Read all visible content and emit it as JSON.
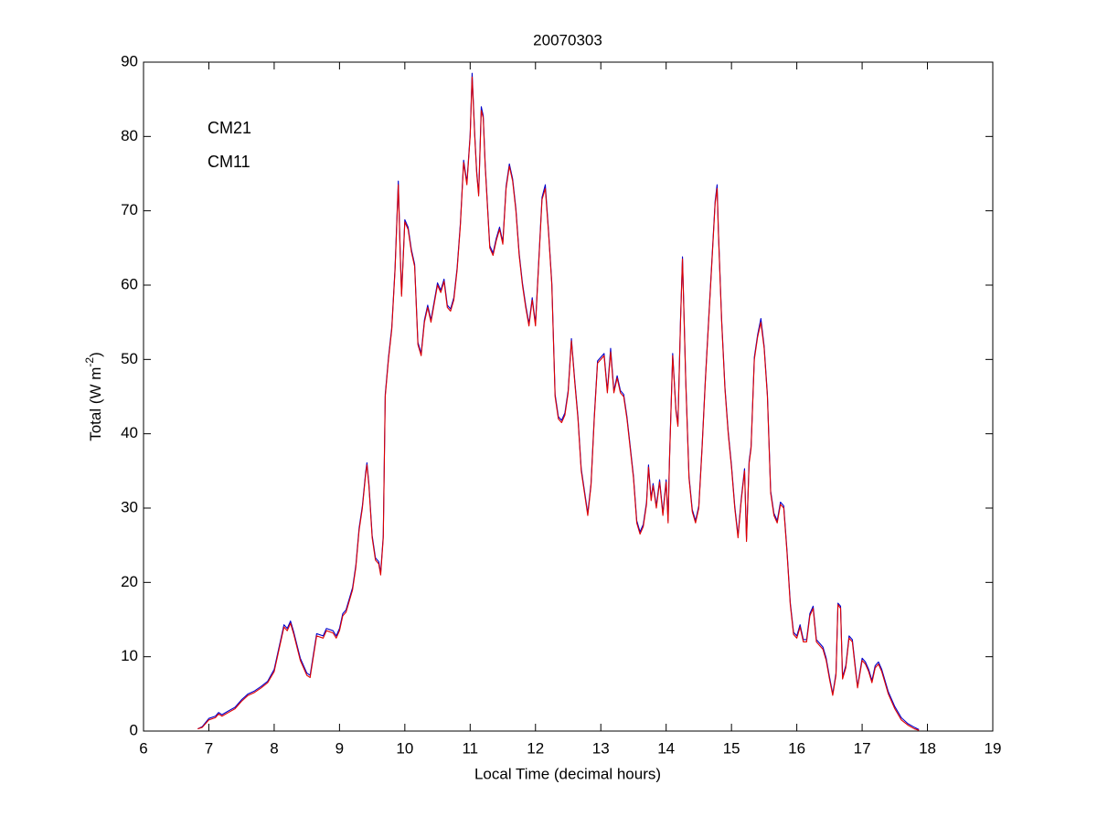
{
  "chart_data": {
    "type": "line",
    "title": "20070303",
    "x_label": "Local Time (decimal hours)",
    "y_label": {
      "text": "Total (W m",
      "superscript": "-2",
      "suffix": ")"
    },
    "xlim": [
      6,
      19
    ],
    "xticks": [
      6,
      7,
      8,
      9,
      10,
      11,
      12,
      13,
      14,
      15,
      16,
      17,
      18,
      19
    ],
    "ylim": [
      0,
      90
    ],
    "yticks": [
      0,
      10,
      20,
      30,
      40,
      50,
      60,
      70,
      80,
      90
    ],
    "grid": false,
    "legend": "upper left",
    "x": [
      6.83,
      6.9,
      7.0,
      7.1,
      7.15,
      7.2,
      7.3,
      7.4,
      7.5,
      7.6,
      7.7,
      7.8,
      7.9,
      8.0,
      8.1,
      8.15,
      8.2,
      8.25,
      8.3,
      8.4,
      8.5,
      8.55,
      8.6,
      8.65,
      8.75,
      8.8,
      8.9,
      8.95,
      9.0,
      9.05,
      9.1,
      9.15,
      9.2,
      9.25,
      9.3,
      9.35,
      9.4,
      9.42,
      9.45,
      9.5,
      9.55,
      9.6,
      9.63,
      9.67,
      9.7,
      9.75,
      9.8,
      9.85,
      9.9,
      9.93,
      9.95,
      10.0,
      10.05,
      10.1,
      10.15,
      10.2,
      10.25,
      10.3,
      10.35,
      10.4,
      10.45,
      10.5,
      10.55,
      10.6,
      10.65,
      10.7,
      10.75,
      10.8,
      10.85,
      10.9,
      10.95,
      11.0,
      11.03,
      11.07,
      11.1,
      11.13,
      11.17,
      11.2,
      11.23,
      11.3,
      11.35,
      11.4,
      11.45,
      11.5,
      11.55,
      11.6,
      11.65,
      11.7,
      11.75,
      11.8,
      11.85,
      11.9,
      11.95,
      12.0,
      12.05,
      12.1,
      12.15,
      12.2,
      12.25,
      12.3,
      12.35,
      12.4,
      12.45,
      12.5,
      12.55,
      12.6,
      12.65,
      12.7,
      12.75,
      12.8,
      12.85,
      12.9,
      12.95,
      13.0,
      13.05,
      13.1,
      13.15,
      13.2,
      13.25,
      13.3,
      13.35,
      13.4,
      13.45,
      13.5,
      13.55,
      13.6,
      13.65,
      13.7,
      13.73,
      13.77,
      13.8,
      13.85,
      13.9,
      13.95,
      14.0,
      14.03,
      14.05,
      14.1,
      14.15,
      14.18,
      14.22,
      14.25,
      14.3,
      14.35,
      14.4,
      14.45,
      14.5,
      14.55,
      14.6,
      14.65,
      14.7,
      14.75,
      14.78,
      14.8,
      14.85,
      14.9,
      14.95,
      15.0,
      15.05,
      15.1,
      15.15,
      15.2,
      15.23,
      15.27,
      15.3,
      15.35,
      15.4,
      15.45,
      15.5,
      15.55,
      15.6,
      15.65,
      15.7,
      15.75,
      15.8,
      15.85,
      15.9,
      15.95,
      16.0,
      16.05,
      16.1,
      16.15,
      16.2,
      16.25,
      16.3,
      16.35,
      16.4,
      16.45,
      16.5,
      16.55,
      16.6,
      16.63,
      16.67,
      16.7,
      16.75,
      16.8,
      16.85,
      16.9,
      16.93,
      17.0,
      17.05,
      17.1,
      17.15,
      17.2,
      17.25,
      17.3,
      17.35,
      17.4,
      17.5,
      17.6,
      17.7,
      17.8,
      17.87
    ],
    "series": [
      {
        "name": "CM21",
        "color": "#0000cc",
        "values": [
          0.3,
          0.6,
          1.7,
          2.0,
          2.5,
          2.2,
          2.7,
          3.2,
          4.2,
          5.0,
          5.4,
          6.0,
          6.7,
          8.3,
          12.3,
          14.3,
          13.8,
          14.8,
          13.3,
          9.8,
          7.8,
          7.5,
          10.3,
          13.1,
          12.8,
          13.8,
          13.5,
          12.8,
          13.8,
          15.8,
          16.3,
          17.8,
          19.3,
          22.3,
          27.3,
          30.3,
          34.8,
          36.1,
          33.3,
          26.3,
          23.3,
          22.8,
          21.3,
          26.3,
          45.3,
          50.3,
          54.3,
          62.3,
          74.0,
          64.3,
          58.8,
          68.8,
          67.8,
          64.8,
          62.8,
          52.3,
          50.8,
          55.3,
          57.3,
          55.3,
          57.8,
          60.3,
          59.3,
          60.8,
          57.3,
          56.8,
          58.3,
          62.3,
          68.3,
          76.8,
          73.8,
          80.3,
          88.5,
          80.3,
          75.3,
          72.3,
          84.0,
          82.8,
          76.3,
          65.3,
          64.3,
          66.3,
          67.8,
          65.8,
          73.3,
          76.3,
          74.3,
          70.3,
          64.3,
          60.3,
          57.3,
          54.8,
          58.3,
          54.8,
          63.3,
          71.8,
          73.5,
          67.3,
          60.3,
          45.3,
          42.3,
          41.8,
          42.8,
          45.8,
          52.8,
          47.3,
          42.3,
          35.3,
          32.3,
          29.3,
          33.3,
          42.3,
          49.8,
          50.3,
          50.8,
          45.8,
          51.5,
          45.8,
          47.8,
          45.8,
          45.3,
          42.3,
          38.3,
          34.3,
          28.3,
          26.8,
          27.8,
          30.8,
          35.8,
          31.3,
          33.3,
          30.3,
          33.8,
          29.3,
          33.8,
          28.3,
          36.3,
          50.8,
          43.3,
          41.3,
          55.3,
          63.8,
          47.3,
          34.3,
          29.8,
          28.3,
          30.3,
          38.3,
          47.3,
          55.3,
          63.3,
          71.3,
          73.5,
          67.3,
          55.3,
          46.3,
          40.3,
          35.8,
          30.3,
          26.3,
          31.3,
          35.3,
          25.8,
          36.3,
          38.3,
          50.3,
          53.3,
          55.5,
          51.8,
          45.3,
          32.3,
          29.3,
          28.3,
          30.8,
          30.3,
          24.3,
          17.3,
          13.3,
          12.8,
          14.3,
          12.3,
          12.3,
          15.8,
          16.8,
          12.3,
          11.8,
          11.3,
          9.8,
          7.3,
          5.0,
          7.8,
          17.2,
          16.8,
          7.3,
          8.8,
          12.8,
          12.3,
          8.3,
          6.0,
          9.8,
          9.3,
          8.3,
          6.8,
          8.8,
          9.3,
          8.3,
          6.8,
          5.3,
          3.3,
          1.8,
          1.0,
          0.5,
          0.2
        ]
      },
      {
        "name": "CM11",
        "color": "#e00000",
        "values": [
          0.3,
          0.5,
          1.5,
          1.8,
          2.3,
          2.0,
          2.5,
          3.0,
          4.0,
          4.8,
          5.2,
          5.8,
          6.5,
          8.0,
          12.0,
          14.0,
          13.5,
          14.5,
          13.0,
          9.5,
          7.5,
          7.2,
          10.0,
          12.8,
          12.5,
          13.5,
          13.2,
          12.5,
          13.5,
          15.5,
          16.0,
          17.5,
          19.0,
          22.0,
          27.0,
          30.0,
          34.5,
          35.8,
          33.0,
          26.0,
          23.0,
          22.5,
          21.0,
          26.0,
          45.0,
          50.0,
          54.0,
          62.0,
          73.5,
          64.0,
          58.5,
          68.5,
          67.5,
          64.5,
          62.5,
          52.0,
          50.5,
          55.0,
          57.0,
          55.0,
          57.5,
          60.0,
          59.0,
          60.5,
          57.0,
          56.5,
          58.0,
          62.0,
          68.0,
          76.5,
          73.5,
          80.0,
          88.0,
          80.0,
          75.0,
          72.0,
          83.5,
          82.5,
          76.0,
          65.0,
          64.0,
          66.0,
          67.5,
          65.5,
          73.0,
          76.0,
          74.0,
          70.0,
          64.0,
          60.0,
          57.0,
          54.5,
          58.0,
          54.5,
          63.0,
          71.5,
          73.0,
          67.0,
          60.0,
          45.0,
          42.0,
          41.5,
          42.5,
          45.5,
          52.5,
          47.0,
          42.0,
          35.0,
          32.0,
          29.0,
          33.0,
          42.0,
          49.5,
          50.0,
          50.5,
          45.5,
          51.0,
          45.5,
          47.5,
          45.5,
          45.0,
          42.0,
          38.0,
          34.0,
          28.0,
          26.5,
          27.5,
          30.5,
          35.5,
          31.0,
          33.0,
          30.0,
          33.5,
          29.0,
          33.5,
          28.0,
          36.0,
          50.5,
          43.0,
          41.0,
          55.0,
          63.5,
          47.0,
          34.0,
          29.5,
          28.0,
          30.0,
          38.0,
          47.0,
          55.0,
          63.0,
          71.0,
          73.0,
          67.0,
          55.0,
          46.0,
          40.0,
          35.5,
          30.0,
          26.0,
          31.0,
          35.0,
          25.5,
          36.0,
          38.0,
          50.0,
          53.0,
          55.0,
          51.5,
          45.0,
          32.0,
          29.0,
          28.0,
          30.5,
          30.0,
          24.0,
          17.0,
          13.0,
          12.5,
          14.0,
          12.0,
          12.0,
          15.5,
          16.5,
          12.0,
          11.5,
          11.0,
          9.5,
          7.0,
          4.8,
          7.5,
          17.0,
          16.5,
          7.0,
          8.5,
          12.5,
          12.0,
          8.0,
          5.8,
          9.5,
          9.0,
          8.0,
          6.5,
          8.5,
          9.0,
          8.0,
          6.5,
          5.0,
          3.0,
          1.5,
          0.8,
          0.3,
          0.1
        ]
      }
    ]
  }
}
